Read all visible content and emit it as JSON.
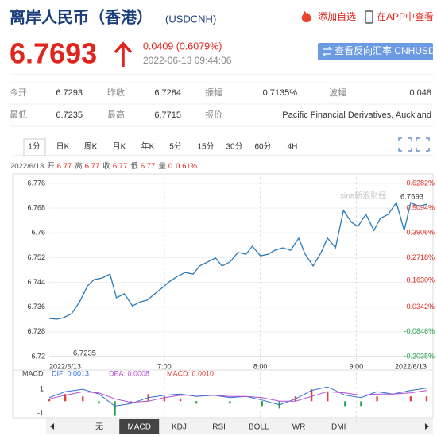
{
  "header": {
    "title": "离岸人民币（香港）",
    "code": "(USDCNH)",
    "actions": [
      "添加自选",
      "在APP中查看"
    ]
  },
  "quote": {
    "price": "6.7693",
    "change": "0.0409 (0.6079%)",
    "time": "2022-06-13 09:44:06",
    "button": "查看反向汇率 CNHUSD"
  },
  "stats": [
    [
      {
        "label": "今开",
        "value": "6.7293"
      },
      {
        "label": "昨收",
        "value": "6.7284"
      },
      {
        "label": "振幅",
        "value": "0.7135%"
      },
      {
        "label": "波幅",
        "value": "0.048"
      }
    ],
    [
      {
        "label": "最低",
        "value": "6.7235"
      },
      {
        "label": "最高",
        "value": "6.7715"
      },
      {
        "label": "报价",
        "value": "Pacific Financial Derivatives, Auckland"
      }
    ]
  ],
  "tabs": [
    "1分",
    "日K",
    "周K",
    "月K",
    "年K",
    "5分",
    "15分",
    "30分",
    "60分",
    "4H"
  ],
  "selected_tab": 0,
  "info": {
    "date": "2022/6/13",
    "items": [
      {
        "label": "开",
        "value": "6.77"
      },
      {
        "label": "高",
        "value": "6.77"
      },
      {
        "label": "收",
        "value": "6.77"
      },
      {
        "label": "低",
        "value": "6.77"
      },
      {
        "label": "量",
        "value": "0"
      }
    ],
    "change": "0.61%"
  },
  "watermark": "sina新浪财经",
  "chart_data": [
    {
      "type": "line",
      "color": "#2a7ab8",
      "grid": true,
      "x": [
        348,
        353,
        357,
        362,
        367,
        372,
        376,
        381,
        386,
        390,
        395,
        400,
        405,
        409,
        414,
        419,
        423,
        428,
        433,
        438,
        442,
        447,
        452,
        456,
        461,
        466,
        471,
        475,
        480,
        485,
        489,
        494,
        499,
        504,
        508,
        513,
        518,
        522,
        527,
        532,
        537,
        541,
        546,
        551,
        555,
        560,
        565,
        570,
        574,
        579,
        584
      ],
      "values": [
        6.7323,
        6.7321,
        6.7326,
        6.7339,
        6.7377,
        6.7429,
        6.7449,
        6.7454,
        6.7467,
        6.739,
        6.7403,
        6.7364,
        6.7377,
        6.7382,
        6.7403,
        6.7424,
        6.7442,
        6.7459,
        6.7472,
        6.7467,
        6.7493,
        6.7506,
        6.7519,
        6.7493,
        6.7506,
        6.7537,
        6.7531,
        6.7557,
        6.7526,
        6.7531,
        6.7544,
        6.7552,
        6.7544,
        6.7583,
        6.7531,
        6.7493,
        6.7537,
        6.7583,
        6.7552,
        6.7673,
        6.7634,
        6.7621,
        6.766,
        6.7608,
        6.7647,
        6.766,
        6.7698,
        6.7608,
        6.7698,
        6.7686,
        6.7693
      ],
      "xlim": [
        348,
        584
      ],
      "xticks": [
        {
          "value": 348,
          "label": "2022/6/13"
        },
        {
          "value": 420,
          "label": "7:00"
        },
        {
          "value": 480,
          "label": "8:00"
        },
        {
          "value": 540,
          "label": "9:00"
        },
        {
          "value": 584,
          "label": "2022/6/13"
        }
      ],
      "ylim": [
        6.72,
        6.776
      ],
      "yticks": [
        6.776,
        6.768,
        6.76,
        6.752,
        6.744,
        6.736,
        6.728,
        6.72
      ],
      "y2lim": [
        -0.2035,
        0.6282
      ],
      "y2ticks": [
        {
          "value": 0.6282,
          "label": "0.6282%"
        },
        {
          "value": 0.5094,
          "label": "0.5094%"
        },
        {
          "value": 0.3906,
          "label": "0.3906%"
        },
        {
          "value": 0.2718,
          "label": "0.2718%"
        },
        {
          "value": 0.163,
          "label": "0.1630%"
        },
        {
          "value": 0.0342,
          "label": "0.0342%"
        },
        {
          "value": -0.0846,
          "label": "-0.0846%"
        },
        {
          "value": -0.2035,
          "label": "-0.2035%"
        }
      ],
      "annotations": [
        {
          "text": "6.7693"
        },
        {
          "text": "6.7235"
        }
      ]
    },
    {
      "type": "macd",
      "title": "MACD",
      "x": [
        348,
        358,
        369,
        379,
        389,
        399,
        410,
        420,
        430,
        440,
        451,
        461,
        471,
        481,
        492,
        502,
        512,
        522,
        533,
        543,
        553,
        563,
        574,
        584
      ],
      "xlim": [
        348,
        584
      ],
      "ylim": [
        -1.3,
        1.8
      ],
      "yticks": [
        1,
        -1
      ],
      "series": [
        {
          "name": "DIF: 0.0013",
          "color": "#2f6fd0",
          "type": "line",
          "values": [
            0.3,
            0.8,
            1.0,
            0.6,
            -0.4,
            -0.2,
            0.3,
            0.5,
            0.6,
            0.4,
            0.5,
            0.3,
            0.4,
            0.1,
            -0.3,
            0.2,
            0.9,
            1.2,
            0.5,
            0.3,
            0.8,
            0.6,
            0.9,
            1.1
          ]
        },
        {
          "name": "DEA: 0.0008",
          "color": "#b04fd6",
          "type": "line",
          "values": [
            0.2,
            0.5,
            0.8,
            0.7,
            0.2,
            -0.1,
            0,
            0.3,
            0.5,
            0.5,
            0.5,
            0.4,
            0.4,
            0.3,
            0,
            0,
            0.4,
            0.8,
            0.7,
            0.5,
            0.6,
            0.6,
            0.7,
            0.9
          ]
        },
        {
          "name": "MACD: 0.0010",
          "color": "#e0413a",
          "negative_color": "#22a046",
          "type": "bar",
          "values": [
            0.2,
            0.6,
            0.4,
            -0.2,
            -1.2,
            -0.2,
            0.6,
            0.4,
            0.2,
            -0.2,
            0,
            -0.2,
            0,
            -0.4,
            -0.6,
            0.4,
            1,
            0.8,
            -0.4,
            -0.4,
            0.4,
            0,
            0.4,
            0.4
          ]
        }
      ]
    }
  ],
  "indicator_tabs": [
    "无",
    "MACD",
    "KDJ",
    "RSI",
    "BOLL",
    "WR",
    "DMI"
  ],
  "selected_indicator": 1
}
